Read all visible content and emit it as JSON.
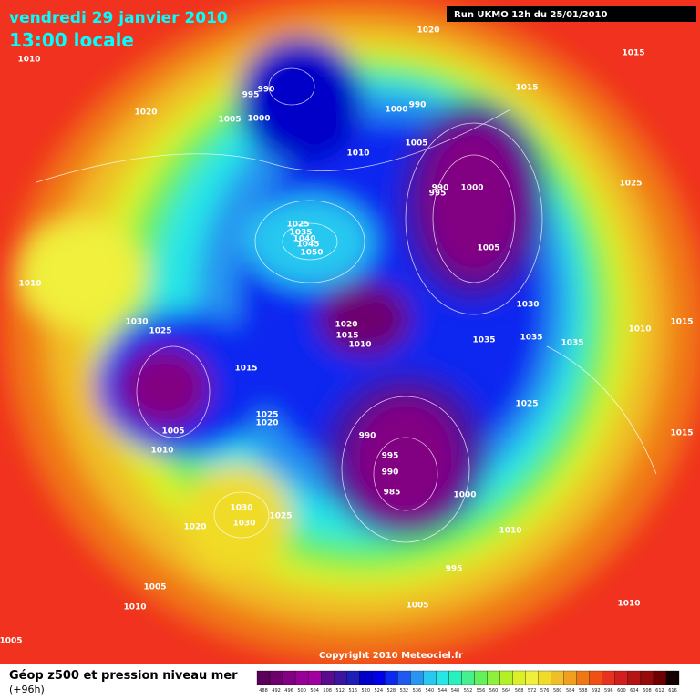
{
  "header": {
    "date": "vendredi 29 janvier 2010",
    "time": "13:00 locale",
    "run": "Run UKMO 12h du 25/01/2010"
  },
  "copyright": "Copyright 2010 Meteociel.fr",
  "legend": {
    "title": "Géop z500 et pression niveau mer",
    "lead": "(+96h)",
    "scale_values": [
      488,
      492,
      496,
      500,
      504,
      508,
      512,
      516,
      520,
      524,
      528,
      532,
      536,
      540,
      544,
      548,
      552,
      556,
      560,
      564,
      568,
      572,
      576,
      580,
      584,
      588,
      592,
      596,
      600,
      604,
      608,
      612,
      616
    ],
    "scale_colors": [
      "#5a005a",
      "#6e006e",
      "#820082",
      "#960096",
      "#a000a0",
      "#5a0a8c",
      "#3c14a0",
      "#1e1eb4",
      "#0000c8",
      "#0000e6",
      "#0a28f0",
      "#1e5af0",
      "#2896f0",
      "#28c8f0",
      "#28e6e6",
      "#28f0be",
      "#46f08c",
      "#64f05a",
      "#8cf03c",
      "#b4f028",
      "#dcf028",
      "#f0f03c",
      "#f0dc28",
      "#f0be28",
      "#f0a01e",
      "#f07814",
      "#f05014",
      "#e6321e",
      "#d21e1e",
      "#b41414",
      "#960a0a",
      "#6e0000",
      "#140000"
    ]
  },
  "isobars": [
    1020,
    1010,
    1015,
    995,
    990,
    1005,
    1000,
    1020,
    1015,
    1000,
    990,
    1005,
    1010,
    990,
    995,
    1000,
    1025,
    1025,
    1035,
    1040,
    1045,
    1050,
    1005,
    1010,
    1030,
    1030,
    1025,
    1020,
    1015,
    1010,
    1035,
    1035,
    1035,
    1010,
    1015,
    1015,
    1025,
    1025,
    1020,
    1005,
    1010,
    990,
    995,
    990,
    985,
    1000,
    1015,
    1030,
    1030,
    1025,
    1020,
    1010,
    995,
    1005,
    1010,
    1005,
    1010,
    1005
  ]
}
